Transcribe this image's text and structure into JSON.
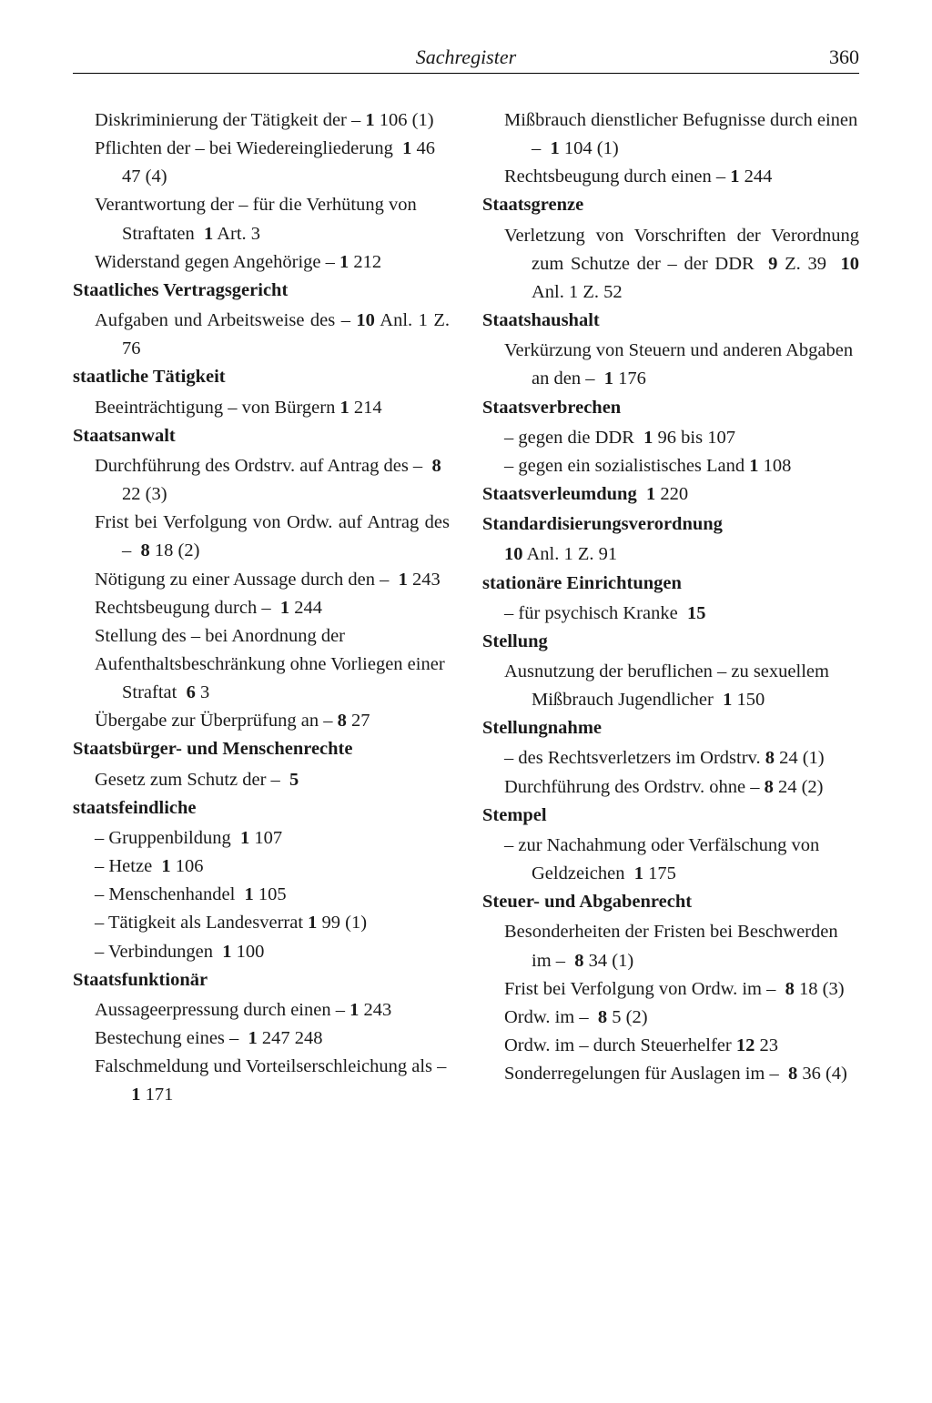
{
  "header": {
    "title": "Sachregister",
    "page_number": "360"
  },
  "colors": {
    "text": "#1a1a1a",
    "background": "#ffffff",
    "rule": "#000000"
  },
  "typography": {
    "body_fontsize_pt": 15,
    "header_fontsize_pt": 16,
    "font_family": "serif"
  },
  "left_column": [
    {
      "type": "sub",
      "html": "Diskriminierung der Tätigkeit der – <span class='b'>1</span> 106 (1)"
    },
    {
      "type": "sub",
      "html": "Pflichten der – bei Wiedereingliederung&nbsp;&nbsp;<span class='b'>1</span> 46 47 (4)"
    },
    {
      "type": "sub",
      "html": "Verantwortung der – für die Verhütung von Straftaten&nbsp;&nbsp;<span class='b'>1</span> Art. 3"
    },
    {
      "type": "sub",
      "just": true,
      "html": "Widerstand gegen Angehörige – <span class='b'>1</span> 212"
    },
    {
      "type": "head",
      "html": "Staatliches Vertragsgericht"
    },
    {
      "type": "sub",
      "just": true,
      "html": "Aufgaben und Arbeitsweise des – <span class='b'>10</span> Anl. 1 Z. 76"
    },
    {
      "type": "head",
      "html": "staatliche Tätigkeit"
    },
    {
      "type": "sub",
      "just": true,
      "html": "Beeinträchtigung – von Bürgern <span class='b'>1</span> 214"
    },
    {
      "type": "head",
      "html": "Staatsanwalt"
    },
    {
      "type": "sub",
      "html": "Durchführung des Ordstrv. auf Antrag des –&nbsp;&nbsp;<span class='b'>8</span> 22 (3)"
    },
    {
      "type": "sub",
      "just": true,
      "html": "Frist bei Verfolgung von Ordw. auf Antrag des –&nbsp;&nbsp;<span class='b'>8</span> 18 (2)"
    },
    {
      "type": "sub",
      "html": "Nötigung zu einer Aussage durch den –&nbsp;&nbsp;<span class='b'>1</span> 243"
    },
    {
      "type": "sub",
      "html": "Rechtsbeugung durch –&nbsp;&nbsp;<span class='b'>1</span> 244"
    },
    {
      "type": "sub",
      "html": "Stellung des – bei Anordnung der"
    },
    {
      "type": "sub",
      "html": "Aufenthaltsbeschränkung ohne Vorliegen einer Straftat&nbsp;&nbsp;<span class='b'>6</span> 3"
    },
    {
      "type": "sub",
      "html": "Übergabe zur Überprüfung an – <span class='b'>8</span> 27"
    },
    {
      "type": "head",
      "html": "Staatsbürger- und Menschenrechte"
    },
    {
      "type": "sub",
      "html": "Gesetz zum Schutz der –&nbsp;&nbsp;<span class='b'>5</span>"
    },
    {
      "type": "head",
      "html": "staatsfeindliche"
    },
    {
      "type": "sub",
      "html": "– Gruppenbildung&nbsp;&nbsp;<span class='b'>1</span> 107"
    },
    {
      "type": "sub",
      "html": "– Hetze&nbsp;&nbsp;<span class='b'>1</span> 106"
    },
    {
      "type": "sub",
      "html": "– Menschenhandel&nbsp;&nbsp;<span class='b'>1</span> 105"
    },
    {
      "type": "sub",
      "html": "– Tätigkeit als Landesverrat <span class='b'>1</span> 99 (1)"
    },
    {
      "type": "sub",
      "html": "– Verbindungen&nbsp;&nbsp;<span class='b'>1</span> 100"
    },
    {
      "type": "head",
      "html": "Staatsfunktionär"
    },
    {
      "type": "sub",
      "just": true,
      "html": "Aussageerpressung durch einen – <span class='b'>1</span> 243"
    },
    {
      "type": "sub",
      "html": "Bestechung eines –&nbsp;&nbsp;<span class='b'>1</span> 247 248"
    },
    {
      "type": "sub",
      "html": "Falschmeldung und Vorteilserschleichung als –&nbsp;&nbsp;<span class='b'>1</span> 171"
    }
  ],
  "right_column": [
    {
      "type": "sub",
      "html": "Mißbrauch dienstlicher Befugnisse durch einen –&nbsp;&nbsp;<span class='b'>1</span> 104 (1)"
    },
    {
      "type": "sub",
      "html": "Rechtsbeugung durch einen – <span class='b'>1</span> 244"
    },
    {
      "type": "head",
      "html": "Staatsgrenze"
    },
    {
      "type": "sub",
      "just": true,
      "html": "Verletzung von Vorschriften der Verordnung zum Schutze der – der DDR&nbsp;&nbsp;<span class='b'>9</span> Z. 39&nbsp;&nbsp;<span class='b'>10</span> Anl. 1 Z. 52"
    },
    {
      "type": "head",
      "html": "Staatshaushalt"
    },
    {
      "type": "sub",
      "html": "Verkürzung von Steuern und anderen Abgaben an den –&nbsp;&nbsp;<span class='b'>1</span> 176"
    },
    {
      "type": "head",
      "html": "Staatsverbrechen"
    },
    {
      "type": "sub",
      "html": "– gegen die DDR&nbsp;&nbsp;<span class='b'>1</span> 96 bis 107"
    },
    {
      "type": "sub",
      "html": "– gegen ein sozialistisches Land <span class='b'>1</span> 108"
    },
    {
      "type": "head",
      "html": "Staatsverleumdung&nbsp;&nbsp;<span class='b'>1</span> <span style='font-weight:normal'>220</span>"
    },
    {
      "type": "head",
      "html": "Standardisierungsverordnung"
    },
    {
      "type": "sub",
      "html": "<span class='b'>10</span> Anl. 1 Z. 91"
    },
    {
      "type": "head",
      "html": "stationäre Einrichtungen"
    },
    {
      "type": "sub",
      "html": "– für psychisch Kranke&nbsp;&nbsp;<span class='b'>15</span>"
    },
    {
      "type": "head",
      "html": "Stellung"
    },
    {
      "type": "sub",
      "html": "Ausnutzung der beruflichen – zu sexuellem Mißbrauch Jugendlicher&nbsp;&nbsp;<span class='b'>1</span> 150"
    },
    {
      "type": "head",
      "html": "Stellungnahme"
    },
    {
      "type": "sub",
      "html": "– des Rechtsverletzers im Ordstrv. <span class='b'>8</span> 24 (1)"
    },
    {
      "type": "sub",
      "html": "Durchführung des Ordstrv. ohne – <span class='b'>8</span> 24 (2)"
    },
    {
      "type": "head",
      "html": "Stempel"
    },
    {
      "type": "sub",
      "html": "– zur Nachahmung oder Verfälschung von Geldzeichen&nbsp;&nbsp;<span class='b'>1</span> 175"
    },
    {
      "type": "head",
      "html": "Steuer- und Abgabenrecht"
    },
    {
      "type": "sub",
      "html": "Besonderheiten der Fristen bei Beschwerden im –&nbsp;&nbsp;<span class='b'>8</span> 34 (1)"
    },
    {
      "type": "sub",
      "just": true,
      "html": "Frist bei Verfolgung von Ordw. im –&nbsp;&nbsp;<span class='b'>8</span> 18 (3)"
    },
    {
      "type": "sub",
      "html": "Ordw. im –&nbsp;&nbsp;<span class='b'>8</span> 5 (2)"
    },
    {
      "type": "sub",
      "html": "Ordw. im – durch Steuerhelfer <span class='b'>12</span> 23"
    },
    {
      "type": "sub",
      "html": "Sonderregelungen für Auslagen im –&nbsp;&nbsp;<span class='b'>8</span> 36 (4)"
    }
  ]
}
